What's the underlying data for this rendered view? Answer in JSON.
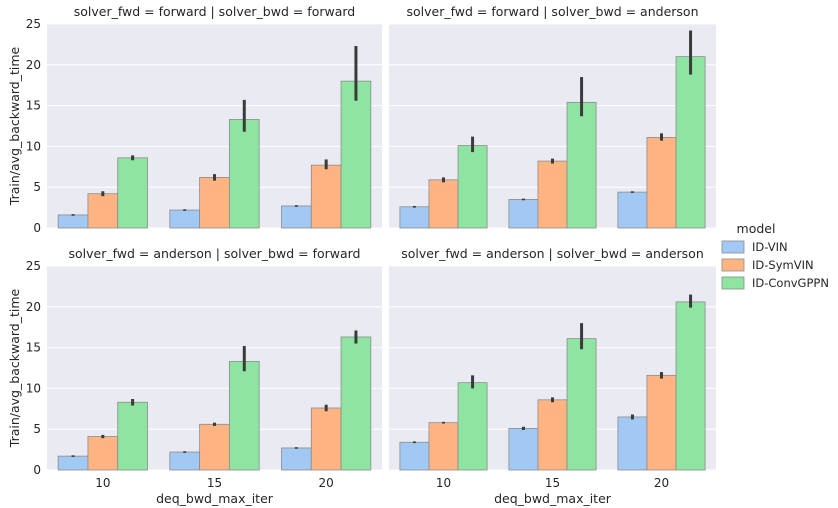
{
  "chart_data": {
    "type": "bar",
    "categories": [
      "10",
      "15",
      "20"
    ],
    "xlabel": "deq_bwd_max_iter",
    "ylabel": "Train/avg_backward_time",
    "ylim": [
      0,
      25
    ],
    "yticks": [
      "0",
      "5",
      "10",
      "15",
      "20",
      "25"
    ],
    "grid": true,
    "legend": {
      "title": "model",
      "placement": "right",
      "entries": [
        "ID-VIN",
        "ID-SymVIN",
        "ID-ConvGPPN"
      ]
    },
    "colors": {
      "ID-VIN": "#a1c9f4",
      "ID-SymVIN": "#ffb482",
      "ID-ConvGPPN": "#8de5a1",
      "background": "#eaeaf2",
      "errorbar": "#3b3b3b"
    },
    "panels": [
      {
        "title": "solver_fwd = forward | solver_bwd = forward",
        "series": [
          {
            "name": "ID-VIN",
            "values": [
              1.6,
              2.2,
              2.7
            ],
            "err": [
              [
                1.5,
                1.7
              ],
              [
                2.1,
                2.3
              ],
              [
                2.6,
                2.8
              ]
            ]
          },
          {
            "name": "ID-SymVIN",
            "values": [
              4.2,
              6.2,
              7.7
            ],
            "err": [
              [
                3.9,
                4.5
              ],
              [
                5.8,
                6.6
              ],
              [
                7.2,
                8.4
              ]
            ]
          },
          {
            "name": "ID-ConvGPPN",
            "values": [
              8.6,
              13.3,
              18.0
            ],
            "err": [
              [
                8.3,
                8.9
              ],
              [
                11.8,
                15.7
              ],
              [
                15.6,
                22.3
              ]
            ]
          }
        ]
      },
      {
        "title": "solver_fwd = forward | solver_bwd = anderson",
        "series": [
          {
            "name": "ID-VIN",
            "values": [
              2.6,
              3.5,
              4.4
            ],
            "err": [
              [
                2.5,
                2.7
              ],
              [
                3.4,
                3.6
              ],
              [
                4.3,
                4.5
              ]
            ]
          },
          {
            "name": "ID-SymVIN",
            "values": [
              5.9,
              8.2,
              11.1
            ],
            "err": [
              [
                5.6,
                6.2
              ],
              [
                7.9,
                8.5
              ],
              [
                10.7,
                11.6
              ]
            ]
          },
          {
            "name": "ID-ConvGPPN",
            "values": [
              10.1,
              15.4,
              21.0
            ],
            "err": [
              [
                9.3,
                11.2
              ],
              [
                13.7,
                18.5
              ],
              [
                18.8,
                24.2
              ]
            ]
          }
        ]
      },
      {
        "title": "solver_fwd = anderson | solver_bwd = forward",
        "series": [
          {
            "name": "ID-VIN",
            "values": [
              1.7,
              2.2,
              2.7
            ],
            "err": [
              [
                1.6,
                1.8
              ],
              [
                2.1,
                2.3
              ],
              [
                2.6,
                2.8
              ]
            ]
          },
          {
            "name": "ID-SymVIN",
            "values": [
              4.1,
              5.6,
              7.6
            ],
            "err": [
              [
                3.9,
                4.3
              ],
              [
                5.4,
                5.8
              ],
              [
                7.2,
                8.0
              ]
            ]
          },
          {
            "name": "ID-ConvGPPN",
            "values": [
              8.3,
              13.3,
              16.3
            ],
            "err": [
              [
                7.9,
                8.7
              ],
              [
                12.1,
                15.2
              ],
              [
                15.5,
                17.1
              ]
            ]
          }
        ]
      },
      {
        "title": "solver_fwd = anderson | solver_bwd = anderson",
        "series": [
          {
            "name": "ID-VIN",
            "values": [
              3.4,
              5.1,
              6.5
            ],
            "err": [
              [
                3.3,
                3.5
              ],
              [
                4.9,
                5.3
              ],
              [
                6.2,
                6.8
              ]
            ]
          },
          {
            "name": "ID-SymVIN",
            "values": [
              5.8,
              8.6,
              11.6
            ],
            "err": [
              [
                5.7,
                5.9
              ],
              [
                8.3,
                8.9
              ],
              [
                11.2,
                12.0
              ]
            ]
          },
          {
            "name": "ID-ConvGPPN",
            "values": [
              10.7,
              16.1,
              20.6
            ],
            "err": [
              [
                10.0,
                11.6
              ],
              [
                14.8,
                18.0
              ],
              [
                19.9,
                21.5
              ]
            ]
          }
        ]
      }
    ]
  }
}
